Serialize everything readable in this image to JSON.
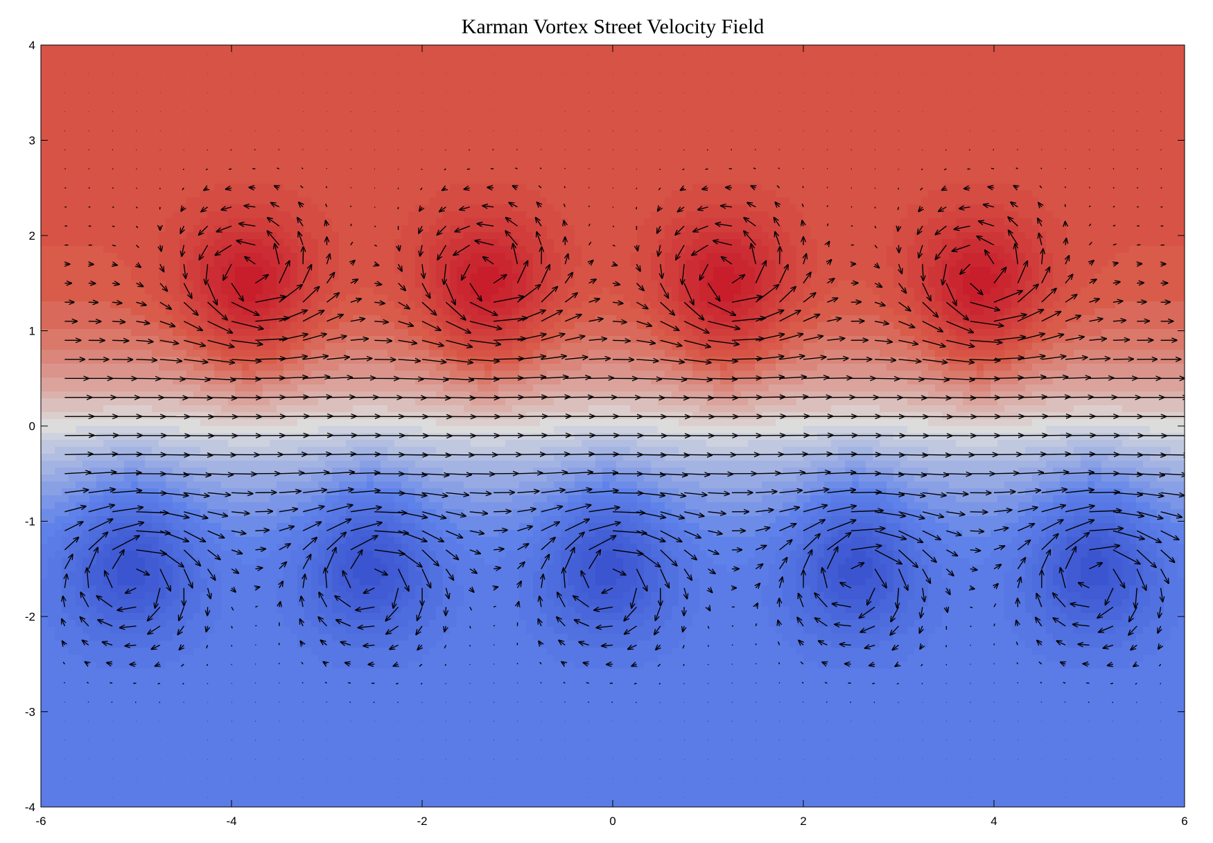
{
  "chart_data": {
    "type": "heatmap",
    "subtype": "filled-contour-with-quiver",
    "title": "Karman Vortex Street Velocity Field",
    "xlabel": "",
    "ylabel": "",
    "xlim": [
      -6,
      6
    ],
    "ylim": [
      -4,
      4
    ],
    "x_ticks": [
      "-6",
      "-4",
      "-2",
      "0",
      "2",
      "4",
      "6"
    ],
    "y_ticks": [
      "-4",
      "-3",
      "-2",
      "-1",
      "0",
      "1",
      "2",
      "3",
      "4"
    ],
    "grid": false,
    "colormap": {
      "name": "coolwarm",
      "low": "#5f82ea",
      "mid": "#dcdcdc",
      "high": "#d95b4a",
      "peak_high": "#c81e2c",
      "peak_low": "#3b55d0"
    },
    "vortices": [
      {
        "x": -3.82,
        "y": 1.55,
        "sign": "positive"
      },
      {
        "x": -1.32,
        "y": 1.55,
        "sign": "positive"
      },
      {
        "x": 1.18,
        "y": 1.55,
        "sign": "positive"
      },
      {
        "x": 3.85,
        "y": 1.55,
        "sign": "positive"
      },
      {
        "x": -5.05,
        "y": -1.55,
        "sign": "negative"
      },
      {
        "x": -2.55,
        "y": -1.55,
        "sign": "negative"
      },
      {
        "x": -0.05,
        "y": -1.55,
        "sign": "negative"
      },
      {
        "x": 2.55,
        "y": -1.55,
        "sign": "negative"
      },
      {
        "x": 5.05,
        "y": -1.55,
        "sign": "negative"
      }
    ],
    "quiver_grid": {
      "x_spacing": 0.25,
      "y_spacing": 0.2,
      "arrow_color": "#000000"
    }
  }
}
